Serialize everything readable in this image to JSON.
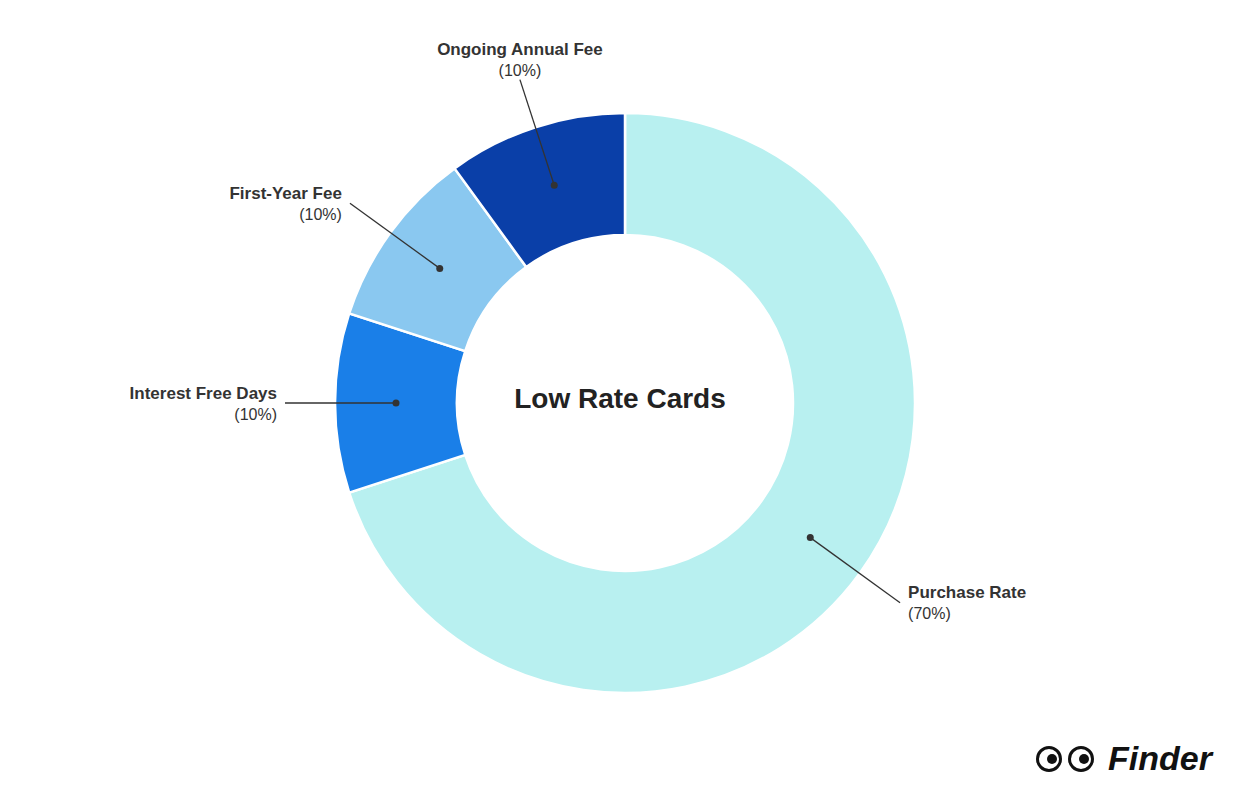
{
  "chart_data": {
    "type": "pie",
    "categories": [
      "Purchase Rate",
      "Interest Free Days",
      "First-Year Fee",
      "Ongoing Annual Fee"
    ],
    "values": [
      70,
      10,
      10,
      10
    ],
    "value_labels": [
      "(70%)",
      "(10%)",
      "(10%)",
      "(10%)"
    ],
    "colors": [
      "#b8f0f0",
      "#1a7fe8",
      "#8ac8f0",
      "#0a3fa8"
    ],
    "data_labels": true,
    "annotations": [
      "Low Rate Cards",
      "Finder"
    ]
  }
}
